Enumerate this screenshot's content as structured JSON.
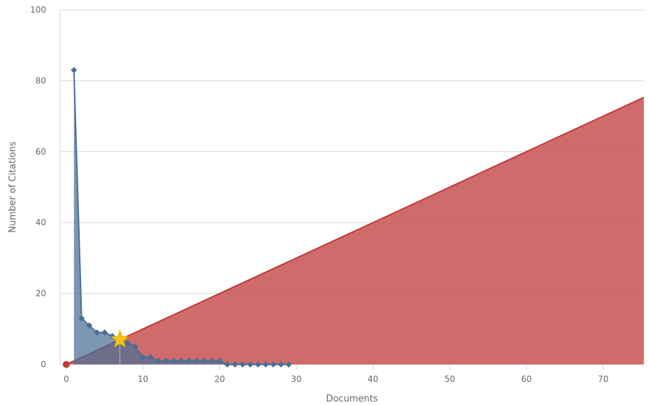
{
  "chart_data": {
    "type": "area",
    "xlabel": "Documents",
    "ylabel": "Number of Citations",
    "xlim": [
      -0.8,
      75.3
    ],
    "ylim": [
      0,
      100
    ],
    "x_ticks": [
      0,
      10,
      20,
      30,
      40,
      50,
      60,
      70
    ],
    "y_ticks": [
      0,
      20,
      40,
      60,
      80,
      100
    ],
    "grid": true,
    "series": [
      {
        "type": "area-line",
        "color": "#4a6f96",
        "fill": "#4a6f96",
        "marker": "diamond",
        "x": [
          1,
          2,
          3,
          4,
          5,
          6,
          7,
          8,
          9,
          10,
          11,
          12,
          13,
          14,
          15,
          16,
          17,
          18,
          19,
          20,
          21,
          22,
          23,
          24,
          25,
          26,
          27,
          28,
          29
        ],
        "y": [
          83,
          13,
          11,
          9,
          9,
          8,
          7,
          6,
          5,
          2,
          2,
          1,
          1,
          1,
          1,
          1,
          1,
          1,
          1,
          1,
          0,
          0,
          0,
          0,
          0,
          0,
          0,
          0,
          0
        ]
      },
      {
        "type": "area-line",
        "color": "#c03a3a",
        "fill": "#c54a4a",
        "x": [
          0,
          75.3
        ],
        "y": [
          0,
          75.3
        ]
      }
    ],
    "origin_point": {
      "x": 0,
      "y": 0,
      "color": "#c03a3a"
    },
    "h_index_marker": {
      "x": 7,
      "y": 7,
      "shape": "star",
      "color": "#f5c518"
    }
  }
}
